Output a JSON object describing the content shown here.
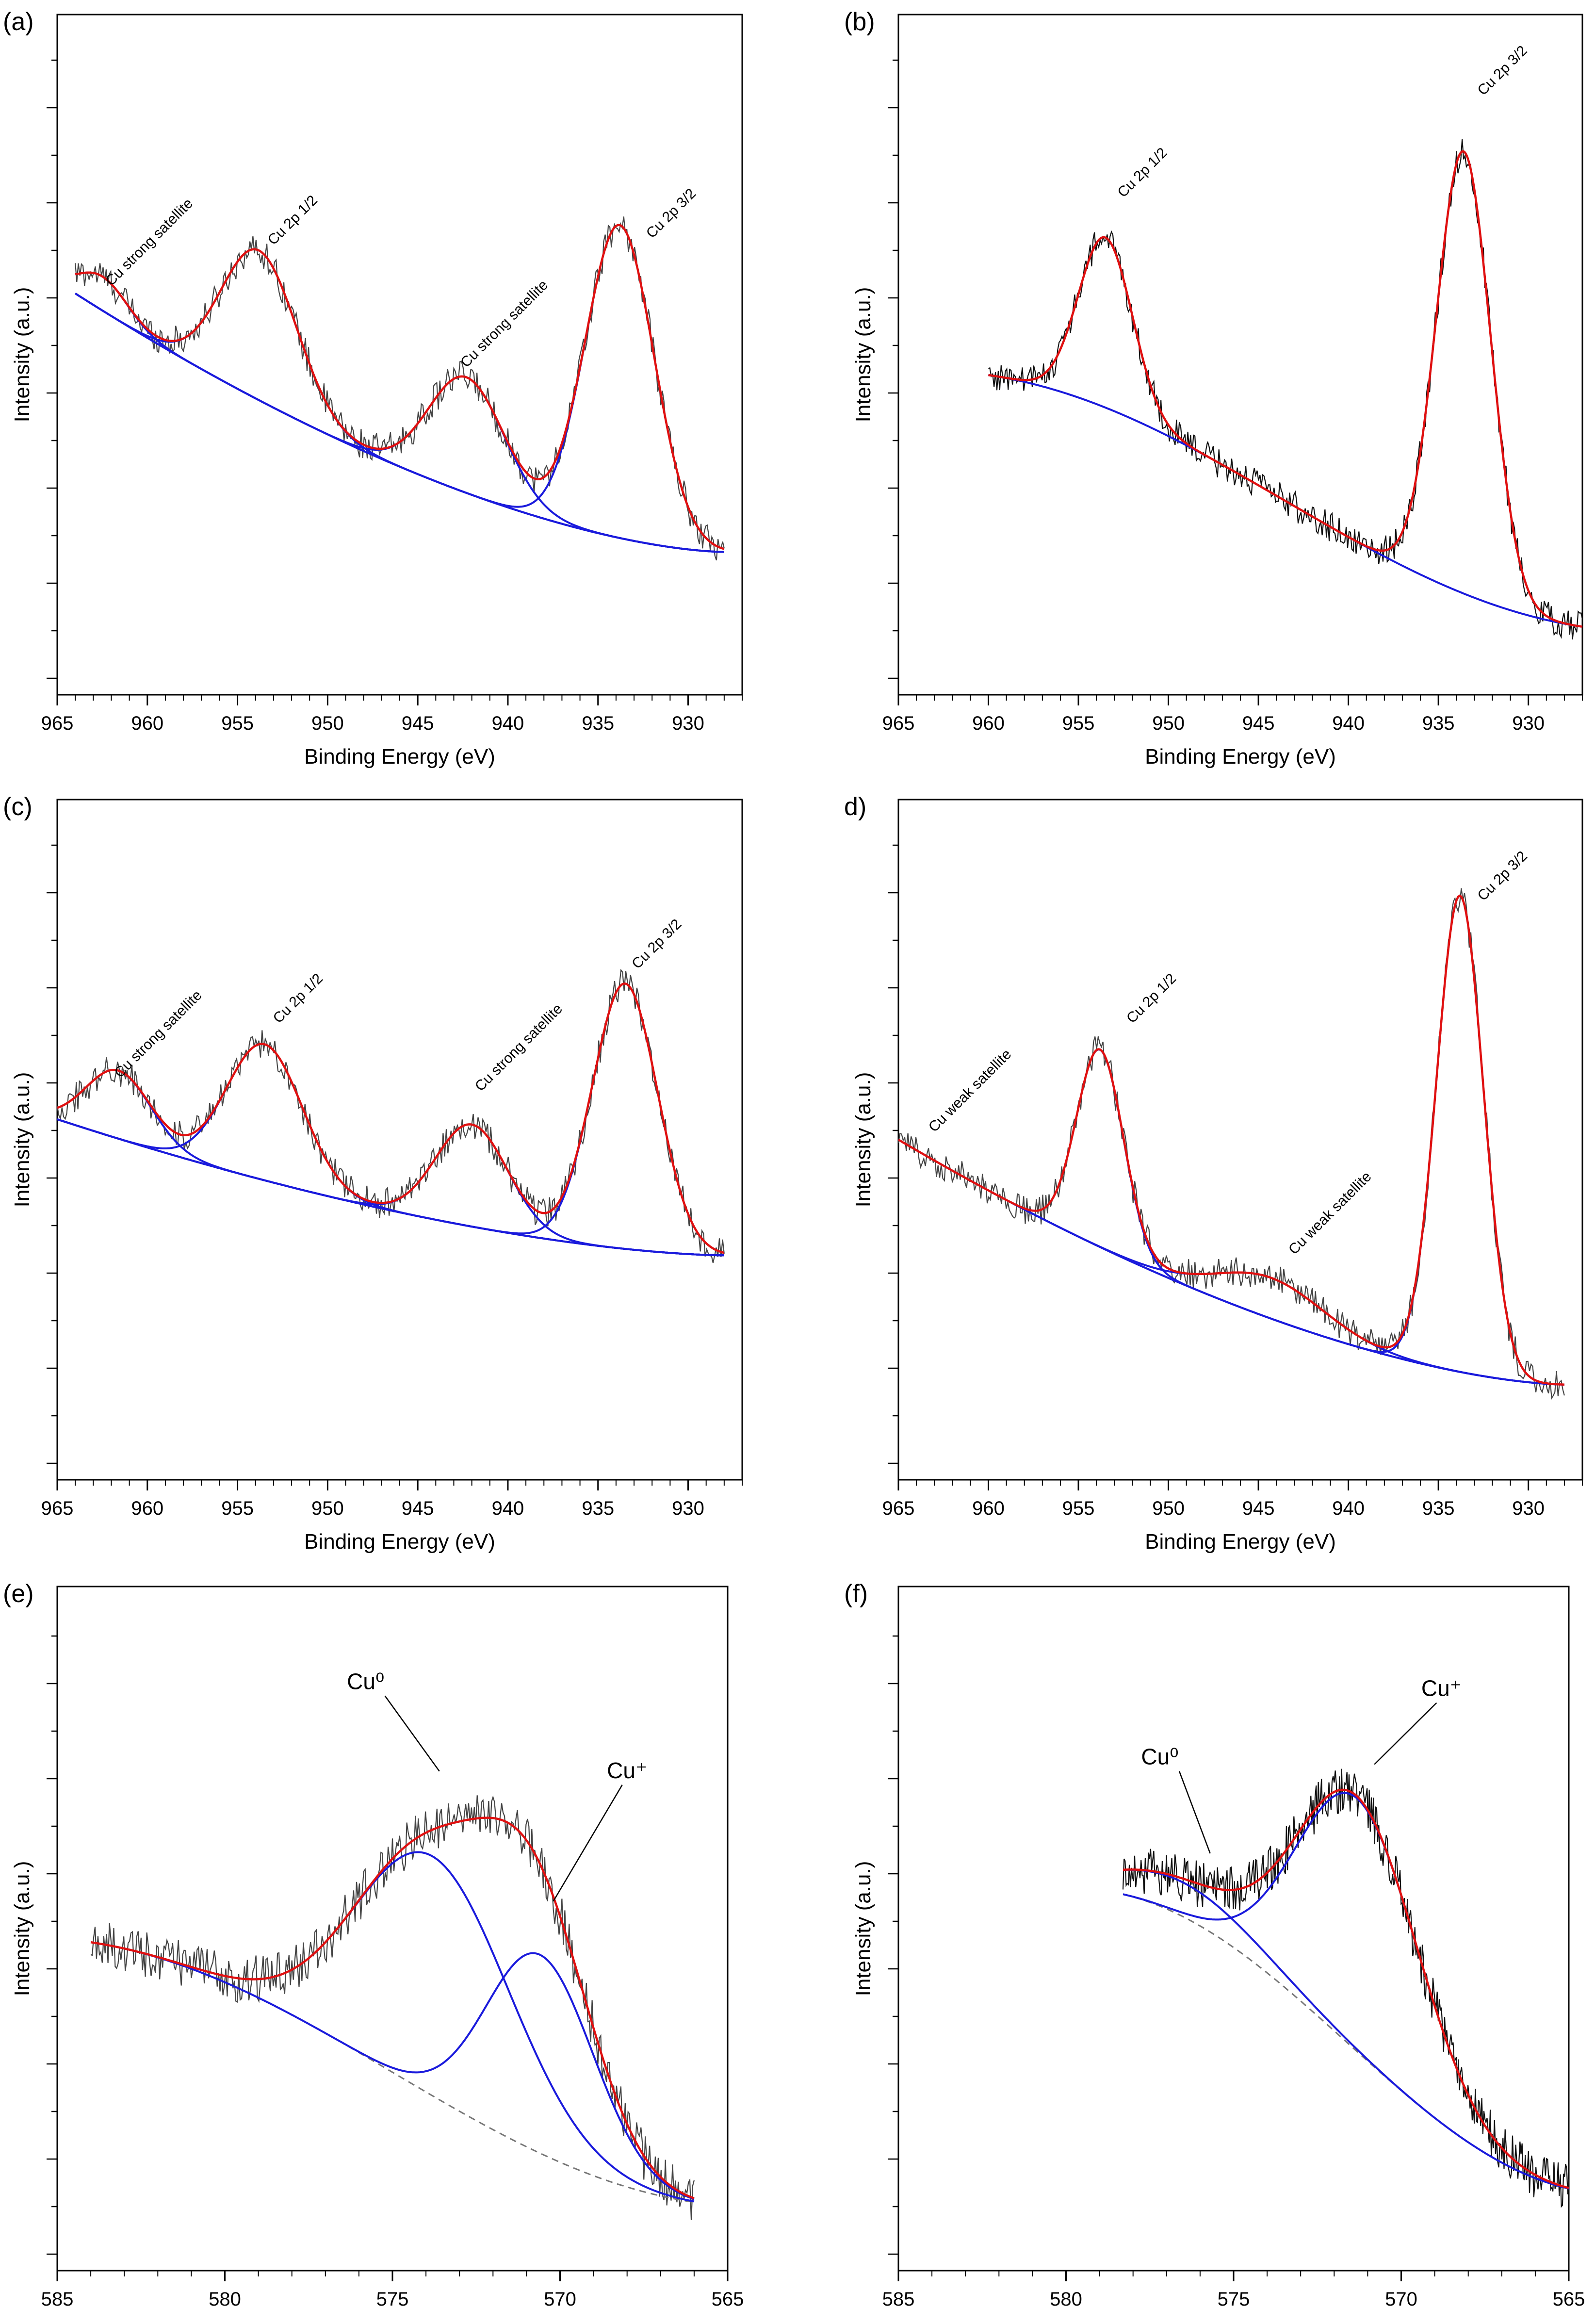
{
  "chart_data": [
    {
      "type": "line",
      "panel_label": "(a)",
      "xlabel": "Binding Energy (eV)",
      "ylabel": "Intensity (a.u.)",
      "xlim": [
        965,
        927
      ],
      "ylim": [
        0,
        100
      ],
      "xticks": [
        965,
        960,
        955,
        950,
        945,
        940,
        935,
        930
      ],
      "xtick_labels": [
        "965",
        "960",
        "955",
        "950",
        "945",
        "940",
        "935",
        "930"
      ],
      "background": {
        "type": "poly",
        "from": [
          964,
          59
        ],
        "to": [
          928,
          21
        ]
      },
      "peaks": [
        {
          "center": 962.5,
          "height": 5,
          "width": 1.4
        },
        {
          "center": 953.8,
          "height": 22,
          "width": 2.1
        },
        {
          "center": 942.3,
          "height": 17,
          "width": 2.1
        },
        {
          "center": 933.8,
          "height": 46,
          "width": 1.9
        }
      ],
      "annotations": [
        {
          "text": "Cu strong satellite",
          "x": 962.0,
          "y": 60
        },
        {
          "text": "Cu 2p 1/2",
          "x": 953.0,
          "y": 66
        },
        {
          "text": "Cu strong satellite",
          "x": 942.3,
          "y": 48
        },
        {
          "text": "Cu 2p 3/2",
          "x": 932.0,
          "y": 67
        }
      ],
      "series": [
        {
          "name": "raw data"
        },
        {
          "name": "fit envelope"
        },
        {
          "name": "components"
        }
      ]
    },
    {
      "type": "line",
      "panel_label": "(b)",
      "xlabel": "Binding Energy (eV)",
      "ylabel": "Intensity (a.u.)",
      "xlim": [
        965,
        927
      ],
      "ylim": [
        0,
        100
      ],
      "xticks": [
        965,
        960,
        955,
        950,
        945,
        940,
        935,
        930
      ],
      "xtick_labels": [
        "965",
        "960",
        "955",
        "950",
        "945",
        "940",
        "935",
        "930"
      ],
      "background": {
        "type": "shirley",
        "from": [
          960,
          47
        ],
        "to": [
          927,
          10
        ],
        "dashed": true
      },
      "peaks": [
        {
          "center": 953.5,
          "height": 25,
          "width": 1.5
        },
        {
          "center": 933.6,
          "height": 65,
          "width": 1.5
        }
      ],
      "annotations": [
        {
          "text": "Cu 2p 1/2",
          "x": 952.5,
          "y": 73
        },
        {
          "text": "Cu 2p 3/2",
          "x": 932.5,
          "y": 88
        }
      ],
      "series": [
        {
          "name": "raw data"
        },
        {
          "name": "fit envelope"
        },
        {
          "name": "components"
        },
        {
          "name": "background"
        }
      ]
    },
    {
      "type": "line",
      "panel_label": "(c)",
      "xlabel": "Binding Energy (eV)",
      "ylabel": "Intensity (a.u.)",
      "xlim": [
        965,
        927
      ],
      "ylim": [
        0,
        100
      ],
      "xticks": [
        965,
        960,
        955,
        950,
        945,
        940,
        935,
        930
      ],
      "xtick_labels": [
        "965",
        "960",
        "955",
        "950",
        "945",
        "940",
        "935",
        "930"
      ],
      "background": {
        "type": "poly",
        "from": [
          965,
          53
        ],
        "to": [
          928,
          33
        ]
      },
      "peaks": [
        {
          "center": 961.6,
          "height": 10,
          "width": 1.8
        },
        {
          "center": 953.5,
          "height": 20,
          "width": 2.1
        },
        {
          "center": 942.0,
          "height": 15,
          "width": 2.0
        },
        {
          "center": 933.5,
          "height": 39,
          "width": 1.8
        }
      ],
      "annotations": [
        {
          "text": "Cu strong satellite",
          "x": 961.5,
          "y": 59
        },
        {
          "text": "Cu 2p 1/2",
          "x": 952.7,
          "y": 67
        },
        {
          "text": "Cu strong satellite",
          "x": 941.5,
          "y": 57
        },
        {
          "text": "Cu 2p 3/2",
          "x": 932.8,
          "y": 75
        }
      ],
      "series": [
        {
          "name": "raw data"
        },
        {
          "name": "fit envelope"
        },
        {
          "name": "components"
        }
      ]
    },
    {
      "type": "line",
      "panel_label": "d)",
      "xlabel": "Binding Energy (eV)",
      "ylabel": "Intensity (a.u.)",
      "xlim": [
        965,
        927
      ],
      "ylim": [
        0,
        100
      ],
      "xticks": [
        965,
        960,
        955,
        950,
        945,
        940,
        935,
        930
      ],
      "xtick_labels": [
        "965",
        "960",
        "955",
        "950",
        "945",
        "940",
        "935",
        "930"
      ],
      "background": {
        "type": "poly",
        "from": [
          965,
          50
        ],
        "to": [
          928,
          14
        ]
      },
      "peaks": [
        {
          "center": 953.8,
          "height": 29,
          "width": 1.3
        },
        {
          "center": 944.3,
          "height": 6,
          "width": 3.0
        },
        {
          "center": 933.8,
          "height": 70,
          "width": 1.3
        }
      ],
      "annotations": [
        {
          "text": "Cu weak satellite",
          "x": 963.0,
          "y": 51
        },
        {
          "text": "Cu 2p 1/2",
          "x": 952.0,
          "y": 67
        },
        {
          "text": "Cu weak satellite",
          "x": 943.0,
          "y": 33
        },
        {
          "text": "Cu 2p 3/2",
          "x": 932.5,
          "y": 85
        }
      ],
      "series": [
        {
          "name": "raw data"
        },
        {
          "name": "fit envelope"
        },
        {
          "name": "components"
        }
      ]
    },
    {
      "type": "line",
      "panel_label": "(e)",
      "xlabel": "Binding Energy (eV)",
      "ylabel": "Intensity (a.u.)",
      "xlim": [
        585,
        565
      ],
      "ylim": [
        0,
        100
      ],
      "xticks": [
        585,
        580,
        575,
        570,
        565
      ],
      "xtick_labels": [
        "585",
        "580",
        "575",
        "570",
        "565"
      ],
      "background": {
        "type": "shirley",
        "from": [
          584,
          48
        ],
        "to": [
          566,
          10
        ],
        "dashed": true
      },
      "peaks": [
        {
          "center": 573.8,
          "height": 35,
          "width": 2.3
        },
        {
          "center": 570.6,
          "height": 29,
          "width": 1.6
        }
      ],
      "annotations": [
        {
          "text": "Cu⁰",
          "x": 575.8,
          "y": 85,
          "arrow_to": [
            573.6,
            73
          ]
        },
        {
          "text": "Cu⁺",
          "x": 568.0,
          "y": 72,
          "arrow_to": [
            570.2,
            54
          ]
        }
      ],
      "series": [
        {
          "name": "raw data"
        },
        {
          "name": "fit envelope"
        },
        {
          "name": "components"
        },
        {
          "name": "background"
        }
      ]
    },
    {
      "type": "line",
      "panel_label": "(f)",
      "xlabel": "Binding Energy (eV)",
      "ylabel": "Intensity (a.u.)",
      "xlim": [
        585,
        565
      ],
      "ylim": [
        0,
        100
      ],
      "xticks": [
        585,
        580,
        575,
        570,
        565
      ],
      "xtick_labels": [
        "585",
        "580",
        "575",
        "570",
        "565"
      ],
      "background": {
        "type": "shirley",
        "from": [
          578.3,
          55
        ],
        "to": [
          565,
          12
        ],
        "dashed": true
      },
      "peaks": [
        {
          "center": 576.5,
          "height": 5,
          "width": 2.2
        },
        {
          "center": 571.3,
          "height": 37,
          "width": 1.8
        }
      ],
      "annotations": [
        {
          "text": "Cu⁰",
          "x": 577.2,
          "y": 74,
          "arrow_to": [
            575.7,
            61
          ]
        },
        {
          "text": "Cu⁺",
          "x": 568.8,
          "y": 84,
          "arrow_to": [
            570.8,
            74
          ]
        }
      ],
      "series": [
        {
          "name": "raw data"
        },
        {
          "name": "fit envelope"
        },
        {
          "name": "components"
        },
        {
          "name": "background"
        }
      ]
    }
  ]
}
